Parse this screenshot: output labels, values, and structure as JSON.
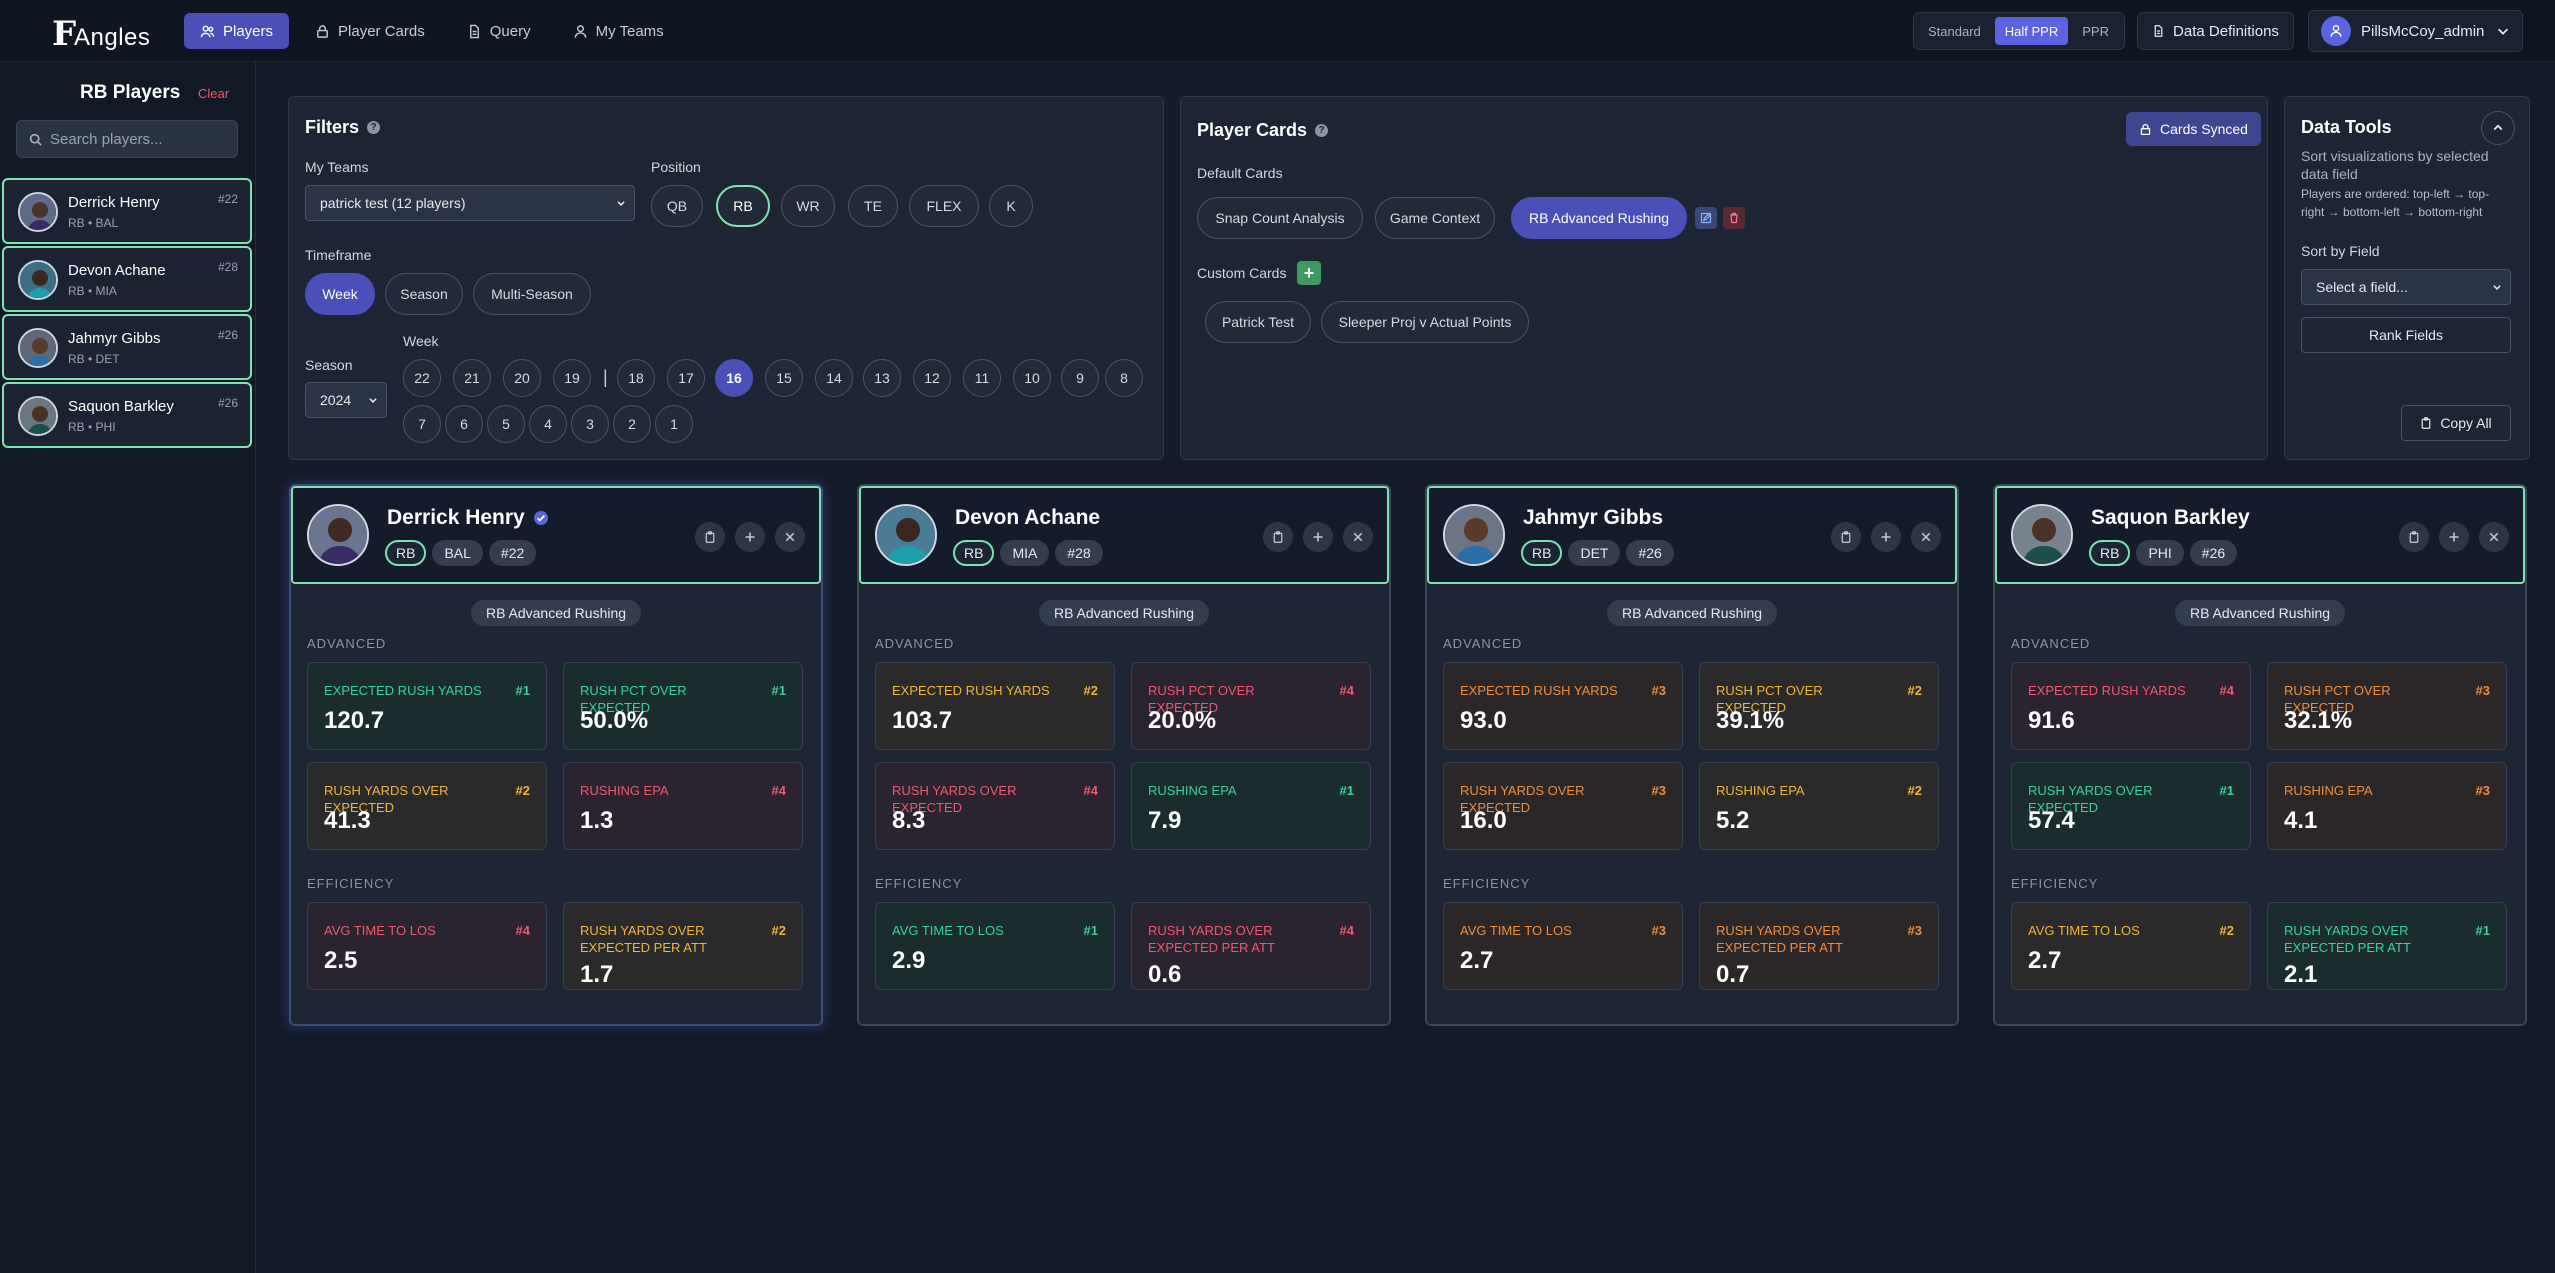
{
  "app": {
    "logo_f": "F",
    "logo_rest": "Angles"
  },
  "nav": [
    {
      "label": "Players",
      "icon": "users-icon",
      "active": true
    },
    {
      "label": "Player Cards",
      "icon": "lock-icon",
      "active": false
    },
    {
      "label": "Query",
      "icon": "document-icon",
      "active": false
    },
    {
      "label": "My Teams",
      "icon": "user-icon",
      "active": false
    }
  ],
  "scoring": {
    "options": [
      "Standard",
      "Half PPR",
      "PPR"
    ],
    "selected": "Half PPR"
  },
  "header": {
    "data_definitions": "Data Definitions",
    "user": "PillsMcCoy_admin"
  },
  "sidebar": {
    "title": "RB Players",
    "clear": "Clear",
    "search_placeholder": "Search players...",
    "players": [
      {
        "name": "Derrick Henry",
        "sub": "RB • BAL",
        "num": "#22"
      },
      {
        "name": "Devon Achane",
        "sub": "RB • MIA",
        "num": "#28"
      },
      {
        "name": "Jahmyr Gibbs",
        "sub": "RB • DET",
        "num": "#26"
      },
      {
        "name": "Saquon Barkley",
        "sub": "RB • PHI",
        "num": "#26"
      }
    ]
  },
  "filters": {
    "title": "Filters",
    "my_teams_label": "My Teams",
    "my_teams_value": "patrick test (12 players)",
    "position_label": "Position",
    "positions": [
      "QB",
      "RB",
      "WR",
      "TE",
      "FLEX",
      "K"
    ],
    "position_selected": "RB",
    "timeframe_label": "Timeframe",
    "timeframes": [
      "Week",
      "Season",
      "Multi-Season"
    ],
    "timeframe_selected": "Week",
    "season_label": "Season",
    "season_value": "2024",
    "week_label": "Week",
    "weeks_row1": [
      "22",
      "21",
      "20",
      "19",
      "18",
      "17",
      "16",
      "15",
      "14",
      "13",
      "12",
      "11",
      "10",
      "9",
      "8"
    ],
    "weeks_row2": [
      "7",
      "6",
      "5",
      "4",
      "3",
      "2",
      "1"
    ],
    "week_selected": "16",
    "week_separator": "|"
  },
  "player_cards": {
    "title": "Player Cards",
    "synced": "Cards Synced",
    "default_label": "Default Cards",
    "default_cards": [
      "Snap Count Analysis",
      "Game Context",
      "RB Advanced Rushing"
    ],
    "default_selected": "RB Advanced Rushing",
    "custom_label": "Custom Cards",
    "custom_cards": [
      "Patrick Test",
      "Sleeper Proj v Actual Points"
    ]
  },
  "data_tools": {
    "title": "Data Tools",
    "desc": "Sort visualizations by selected data field",
    "order_note": "Players are ordered: top-left → top-right → bottom-left → bottom-right",
    "sort_label": "Sort by Field",
    "sort_placeholder": "Select a field...",
    "rank_button": "Rank Fields",
    "copy_button": "Copy All"
  },
  "colors": {
    "rank1": "#3ad39a",
    "rank2": "#f1b53a",
    "rank3": "#f08d3c",
    "rank4": "#f05a6e",
    "accent": "#4a50b8",
    "selected_border": "#7ee3b0"
  },
  "cards": [
    {
      "name": "Derrick Henry",
      "pos": "RB",
      "team": "BAL",
      "num": "#22",
      "verified": true,
      "card": "RB Advanced Rushing",
      "section1": "ADVANCED",
      "section2": "EFFICIENCY",
      "stats": [
        {
          "label": "Expected Rush Yards",
          "rank": "#1",
          "value": "120.7"
        },
        {
          "label": "Rush Pct Over Expected",
          "rank": "#1",
          "value": "50.0%"
        },
        {
          "label": "Rush Yards Over Expected",
          "rank": "#2",
          "value": "41.3"
        },
        {
          "label": "Rushing EPA",
          "rank": "#4",
          "value": "1.3"
        },
        {
          "label": "Avg Time To LOS",
          "rank": "#4",
          "value": "2.5"
        },
        {
          "label": "Rush Yards Over Expected Per Att",
          "rank": "#2",
          "value": "1.7"
        }
      ]
    },
    {
      "name": "Devon Achane",
      "pos": "RB",
      "team": "MIA",
      "num": "#28",
      "verified": false,
      "card": "RB Advanced Rushing",
      "section1": "ADVANCED",
      "section2": "EFFICIENCY",
      "stats": [
        {
          "label": "Expected Rush Yards",
          "rank": "#2",
          "value": "103.7"
        },
        {
          "label": "Rush Pct Over Expected",
          "rank": "#4",
          "value": "20.0%"
        },
        {
          "label": "Rush Yards Over Expected",
          "rank": "#4",
          "value": "8.3"
        },
        {
          "label": "Rushing EPA",
          "rank": "#1",
          "value": "7.9"
        },
        {
          "label": "Avg Time To LOS",
          "rank": "#1",
          "value": "2.9"
        },
        {
          "label": "Rush Yards Over Expected Per Att",
          "rank": "#4",
          "value": "0.6"
        }
      ]
    },
    {
      "name": "Jahmyr Gibbs",
      "pos": "RB",
      "team": "DET",
      "num": "#26",
      "verified": false,
      "card": "RB Advanced Rushing",
      "section1": "ADVANCED",
      "section2": "EFFICIENCY",
      "stats": [
        {
          "label": "Expected Rush Yards",
          "rank": "#3",
          "value": "93.0"
        },
        {
          "label": "Rush Pct Over Expected",
          "rank": "#2",
          "value": "39.1%"
        },
        {
          "label": "Rush Yards Over Expected",
          "rank": "#3",
          "value": "16.0"
        },
        {
          "label": "Rushing EPA",
          "rank": "#2",
          "value": "5.2"
        },
        {
          "label": "Avg Time To LOS",
          "rank": "#3",
          "value": "2.7"
        },
        {
          "label": "Rush Yards Over Expected Per Att",
          "rank": "#3",
          "value": "0.7"
        }
      ]
    },
    {
      "name": "Saquon Barkley",
      "pos": "RB",
      "team": "PHI",
      "num": "#26",
      "verified": false,
      "card": "RB Advanced Rushing",
      "section1": "ADVANCED",
      "section2": "EFFICIENCY",
      "stats": [
        {
          "label": "Expected Rush Yards",
          "rank": "#4",
          "value": "91.6"
        },
        {
          "label": "Rush Pct Over Expected",
          "rank": "#3",
          "value": "32.1%"
        },
        {
          "label": "Rush Yards Over Expected",
          "rank": "#1",
          "value": "57.4"
        },
        {
          "label": "Rushing EPA",
          "rank": "#3",
          "value": "4.1"
        },
        {
          "label": "Avg Time To LOS",
          "rank": "#2",
          "value": "2.7"
        },
        {
          "label": "Rush Yards Over Expected Per Att",
          "rank": "#1",
          "value": "2.1"
        }
      ]
    }
  ]
}
